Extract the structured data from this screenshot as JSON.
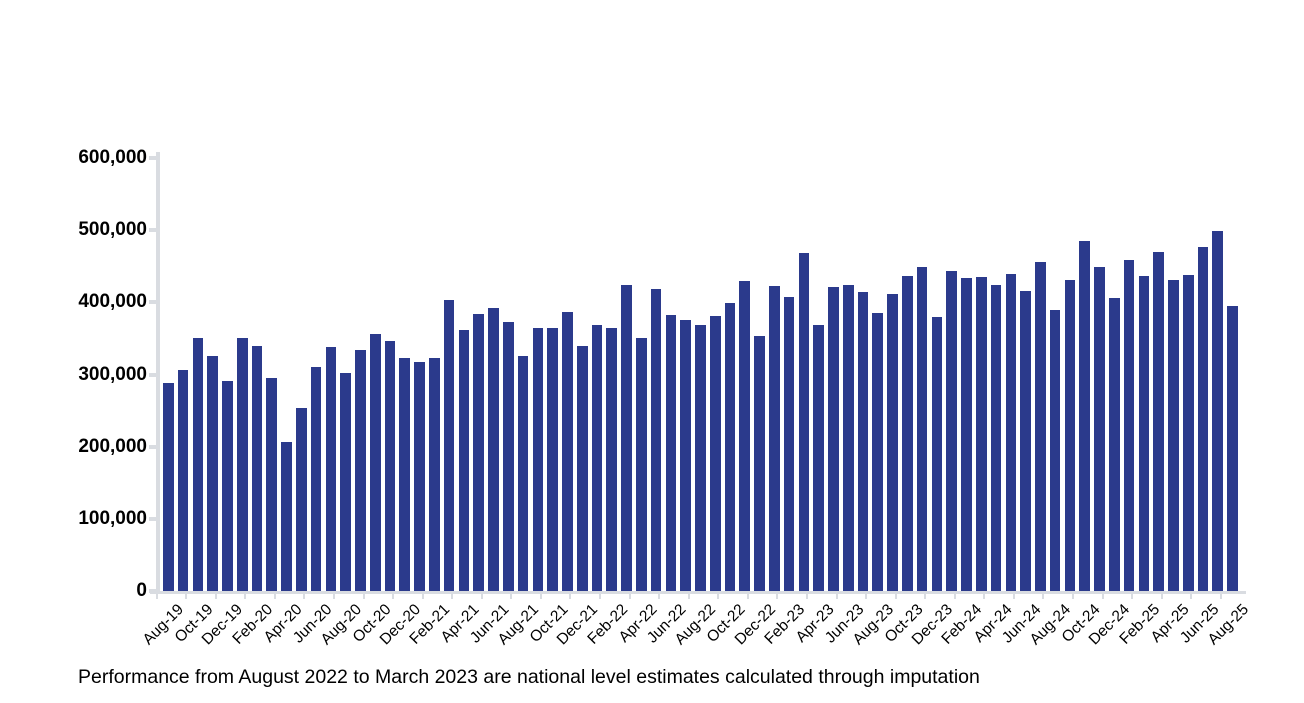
{
  "caption": {
    "text": "Performance from August 2022 to March 2023 are national level estimates calculated through imputation"
  },
  "chart_data": {
    "type": "bar",
    "title": "",
    "xlabel": "",
    "ylabel": "",
    "legend": "none",
    "grid": false,
    "ylim": [
      0,
      600000
    ],
    "x_label_every": 2,
    "colors": {
      "bar": "#2B3A8C",
      "axis": "#D9DCE1",
      "text": "#000000"
    },
    "yticks": [
      {
        "label": "600,000",
        "value": 600000
      },
      {
        "label": "500,000",
        "value": 500000
      },
      {
        "label": "400,000",
        "value": 400000
      },
      {
        "label": "300,000",
        "value": 300000
      },
      {
        "label": "200,000",
        "value": 200000
      },
      {
        "label": "100,000",
        "value": 100000
      },
      {
        "label": "0",
        "value": 0
      }
    ],
    "x": [
      "Aug-19",
      "Sep-19",
      "Oct-19",
      "Nov-19",
      "Dec-19",
      "Jan-20",
      "Feb-20",
      "Mar-20",
      "Apr-20",
      "May-20",
      "Jun-20",
      "Jul-20",
      "Aug-20",
      "Sep-20",
      "Oct-20",
      "Nov-20",
      "Dec-20",
      "Jan-21",
      "Feb-21",
      "Mar-21",
      "Apr-21",
      "May-21",
      "Jun-21",
      "Jul-21",
      "Aug-21",
      "Sep-21",
      "Oct-21",
      "Nov-21",
      "Dec-21",
      "Jan-22",
      "Feb-22",
      "Mar-22",
      "Apr-22",
      "May-22",
      "Jun-22",
      "Jul-22",
      "Aug-22",
      "Sep-22",
      "Oct-22",
      "Nov-22",
      "Dec-22",
      "Jan-23",
      "Feb-23",
      "Mar-23",
      "Apr-23",
      "May-23",
      "Jun-23",
      "Jul-23",
      "Aug-23",
      "Sep-23",
      "Oct-23",
      "Nov-23",
      "Dec-23",
      "Jan-24",
      "Feb-24",
      "Mar-24",
      "Apr-24",
      "May-24",
      "Jun-24",
      "Jul-24",
      "Aug-24",
      "Sep-24",
      "Oct-24",
      "Nov-24",
      "Dec-24",
      "Jan-25",
      "Feb-25",
      "Mar-25",
      "Apr-25",
      "May-25",
      "Jun-25",
      "Jul-25",
      "Aug-25"
    ],
    "values": [
      288000,
      306000,
      351000,
      325000,
      291000,
      350000,
      339000,
      295000,
      207000,
      253000,
      310000,
      338000,
      302000,
      334000,
      356000,
      347000,
      323000,
      317000,
      323000,
      403000,
      362000,
      384000,
      392000,
      373000,
      325000,
      365000,
      364000,
      386000,
      339000,
      369000,
      365000,
      424000,
      351000,
      418000,
      382000,
      376000,
      369000,
      381000,
      399000,
      430000,
      353000,
      423000,
      408000,
      468000,
      368000,
      421000,
      424000,
      415000,
      385000,
      411000,
      437000,
      449000,
      379000,
      443000,
      434000,
      435000,
      424000,
      439000,
      416000,
      456000,
      390000,
      431000,
      485000,
      449000,
      406000,
      459000,
      436000,
      470000,
      431000,
      438000,
      476000,
      499000,
      395000
    ]
  }
}
